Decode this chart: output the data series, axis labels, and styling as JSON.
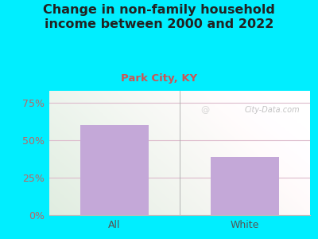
{
  "title": "Change in non-family household\nincome between 2000 and 2022",
  "subtitle": "Park City, KY",
  "categories": [
    "All",
    "White"
  ],
  "values": [
    60,
    39
  ],
  "bar_color": "#c4a8d8",
  "title_color": "#222222",
  "subtitle_color": "#cc5555",
  "ytick_color": "#bb6666",
  "xtick_color": "#555555",
  "yticks": [
    0,
    25,
    50,
    75
  ],
  "ytick_labels": [
    "0%",
    "25%",
    "50%",
    "75%"
  ],
  "ylim": [
    0,
    83
  ],
  "bg_outer": "#00eeff",
  "bg_plot_tl": "#d8ecd4",
  "bg_plot_tr": "#f0f8f0",
  "bg_plot_bl": "#d8edd4",
  "bg_plot_br": "#f5f8f2",
  "grid_color": "#ddbbcc",
  "watermark": "City-Data.com",
  "title_fontsize": 11.5,
  "subtitle_fontsize": 9.5,
  "tick_fontsize": 9,
  "bar_width": 0.52
}
